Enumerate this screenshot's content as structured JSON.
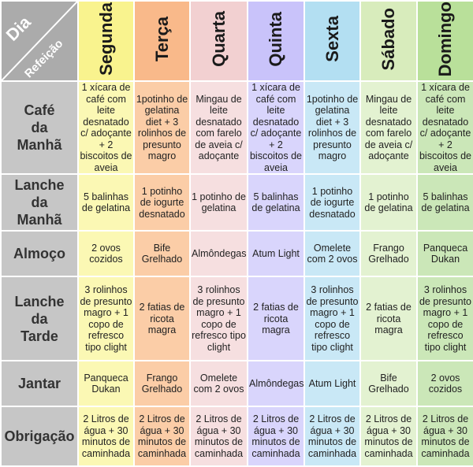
{
  "corner": {
    "top_right_label": "Dia",
    "bottom_left_label": "Refeição"
  },
  "days": [
    {
      "label": "Segunda",
      "color": "#f9f38e",
      "cell_color": "#fbf8b4"
    },
    {
      "label": "Terça",
      "color": "#f9b98a",
      "cell_color": "#fbcda7"
    },
    {
      "label": "Quarta",
      "color": "#f2d0d1",
      "cell_color": "#f6dfe0"
    },
    {
      "label": "Quinta",
      "color": "#c9c3fa",
      "cell_color": "#d9d5fc"
    },
    {
      "label": "Sexta",
      "color": "#b3dff2",
      "cell_color": "#c9e8f6"
    },
    {
      "label": "Sábado",
      "color": "#d8ecbc",
      "cell_color": "#e3f2d1"
    },
    {
      "label": "Domingo",
      "color": "#b9e09a",
      "cell_color": "#cbe7b8"
    }
  ],
  "meals": [
    {
      "label": "Café\nda\nManhã",
      "cells": [
        "1 xícara de café com leite desnatado c/ adoçante + 2 biscoitos de aveia",
        "1potinho de gelatina diet + 3 rolinhos de presunto magro",
        "Mingau de leite desnatado com farelo de aveia c/ adoçante",
        "1 xícara de café com leite desnatado c/ adoçante + 2 biscoitos de aveia",
        "1potinho de gelatina diet + 3 rolinhos de presunto magro",
        "Mingau de leite desnatado com farelo de aveia c/ adoçante",
        "1 xícara de café com leite desnatado c/ adoçante + 2 biscoitos de aveia"
      ]
    },
    {
      "label": "Lanche\nda\nManhã",
      "cells": [
        "5 balinhas de gelatina",
        "1 potinho de iogurte desnatado",
        "1 potinho de gelatina",
        "5 balinhas de gelatina",
        "1 potinho de iogurte desnatado",
        "1 potinho de gelatina",
        "5 balinhas de gelatina"
      ]
    },
    {
      "label": "Almoço",
      "cells": [
        "2 ovos cozidos",
        "Bife Grelhado",
        "Almôndegas",
        "Atum Light",
        "Omelete com 2 ovos",
        "Frango Grelhado",
        "Panqueca Dukan"
      ]
    },
    {
      "label": "Lanche\nda\nTarde",
      "cells": [
        "3 rolinhos de presunto magro + 1 copo de refresco tipo clight",
        "2 fatias de ricota magra",
        "3 rolinhos de presunto magro + 1 copo de refresco tipo clight",
        "2 fatias de ricota magra",
        "3 rolinhos de presunto magro + 1 copo de refresco tipo clight",
        "2 fatias de ricota magra",
        "3 rolinhos de presunto magro + 1 copo de refresco tipo clight"
      ]
    },
    {
      "label": "Jantar",
      "cells": [
        "Panqueca Dukan",
        "Frango Grelhado",
        "Omelete com 2 ovos",
        "Almôndegas",
        "Atum Light",
        "Bife Grelhado",
        "2 ovos cozidos"
      ]
    },
    {
      "label": "Obrigação",
      "cells": [
        "2 Litros de água + 30 minutos de caminhada",
        "2 Litros de água + 30 minutos de caminhada",
        "2 Litros de água + 30 minutos de caminhada",
        "2 Litros de água + 30 minutos de caminhada",
        "2 Litros de água + 30 minutos de caminhada",
        "2 Litros de água + 30 minutos de caminhada",
        "2 Litros de água + 30 minutos de caminhada"
      ]
    }
  ]
}
